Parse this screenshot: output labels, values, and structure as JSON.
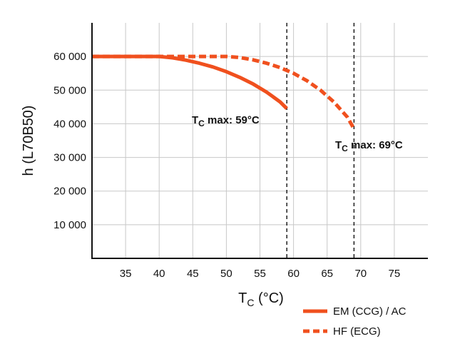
{
  "chart_data": {
    "type": "line",
    "xlabel": {
      "main": "T",
      "sub": "C",
      "unit": " (°C)"
    },
    "ylabel": "h (L70B50)",
    "xlim": [
      30,
      80
    ],
    "ylim": [
      0,
      70000
    ],
    "x_ticks": [
      35,
      40,
      45,
      50,
      55,
      60,
      65,
      70,
      75
    ],
    "y_ticks": [
      10000,
      20000,
      30000,
      40000,
      50000,
      60000
    ],
    "y_tick_labels": [
      "10 000",
      "20 000",
      "30 000",
      "40 000",
      "50 000",
      "60 000"
    ],
    "grid": true,
    "colors": {
      "series": "#f0501e",
      "grid": "#c8c8c8",
      "axis": "#111111"
    },
    "series": [
      {
        "name": "EM (CCG) / AC",
        "style": "solid",
        "x": [
          30,
          35,
          40,
          42,
          44,
          46,
          48,
          50,
          52,
          54,
          56,
          58,
          59
        ],
        "y": [
          60000,
          60000,
          60000,
          59600,
          58900,
          58000,
          56900,
          55500,
          53800,
          51800,
          49400,
          46500,
          44500
        ]
      },
      {
        "name": "HF (ECG)",
        "style": "dashed",
        "x": [
          30,
          35,
          40,
          45,
          50,
          52,
          54,
          56,
          58,
          60,
          62,
          64,
          66,
          68,
          69
        ],
        "y": [
          60000,
          60000,
          60000,
          60000,
          60000,
          59700,
          59000,
          58000,
          56700,
          55000,
          52800,
          50000,
          46500,
          42000,
          38500
        ]
      }
    ],
    "vlines": [
      {
        "x": 59,
        "label": {
          "main": "T",
          "sub": "C",
          "rest": " max: 59°C"
        }
      },
      {
        "x": 69,
        "label": {
          "main": "T",
          "sub": "C",
          "rest": " max: 69°C"
        }
      }
    ],
    "legend_position": "bottom-right"
  }
}
